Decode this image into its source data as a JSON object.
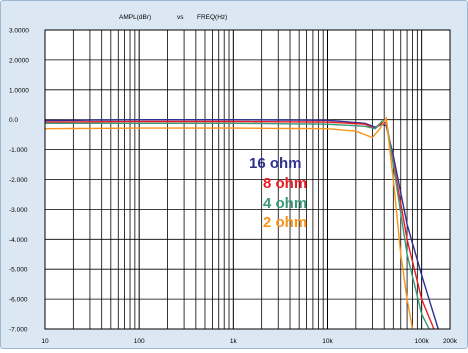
{
  "chart_data": {
    "type": "line",
    "title_y": "AMPL(dBr)",
    "title_vs": "vs",
    "title_x": "FREQ(Hz)",
    "x_scale": "log",
    "xlim": [
      10,
      200000
    ],
    "ylim": [
      -7,
      3
    ],
    "grid": true,
    "y_ticks": [
      {
        "value": 3,
        "label": "3.0000"
      },
      {
        "value": 2,
        "label": "2.0000"
      },
      {
        "value": 1,
        "label": "1.0000"
      },
      {
        "value": 0,
        "label": "0.0"
      },
      {
        "value": -1,
        "label": "-1.000"
      },
      {
        "value": -2,
        "label": "-2.000"
      },
      {
        "value": -3,
        "label": "-3.000"
      },
      {
        "value": -4,
        "label": "-4.000"
      },
      {
        "value": -5,
        "label": "-5.000"
      },
      {
        "value": -6,
        "label": "-6.000"
      },
      {
        "value": -7,
        "label": "-7.000"
      }
    ],
    "x_ticks": [
      {
        "value": 10,
        "label": "10"
      },
      {
        "value": 100,
        "label": "100"
      },
      {
        "value": 1000,
        "label": "1k"
      },
      {
        "value": 10000,
        "label": "10k"
      },
      {
        "value": 100000,
        "label": "100k"
      },
      {
        "value": 200000,
        "label": "200k"
      }
    ],
    "series": [
      {
        "name": "16 ohm",
        "color": "#2e3192",
        "points": [
          [
            10,
            -0.03
          ],
          [
            100,
            0.0
          ],
          [
            1000,
            0.0
          ],
          [
            10000,
            -0.02
          ],
          [
            25000,
            -0.12
          ],
          [
            32000,
            -0.25
          ],
          [
            38000,
            -0.15
          ],
          [
            42000,
            -0.2
          ],
          [
            50000,
            -1.2
          ],
          [
            70000,
            -3.5
          ],
          [
            100000,
            -5.2
          ],
          [
            150000,
            -7.0
          ]
        ]
      },
      {
        "name": "8 ohm",
        "color": "#ed1c24",
        "points": [
          [
            10,
            -0.08
          ],
          [
            100,
            -0.06
          ],
          [
            1000,
            -0.06
          ],
          [
            10000,
            -0.08
          ],
          [
            25000,
            -0.15
          ],
          [
            32000,
            -0.3
          ],
          [
            38000,
            -0.1
          ],
          [
            42000,
            -0.1
          ],
          [
            50000,
            -1.4
          ],
          [
            70000,
            -4.0
          ],
          [
            100000,
            -6.0
          ],
          [
            135000,
            -7.0
          ]
        ]
      },
      {
        "name": "4 ohm",
        "color": "#3a9a7a",
        "points": [
          [
            10,
            -0.12
          ],
          [
            100,
            -0.12
          ],
          [
            1000,
            -0.12
          ],
          [
            10000,
            -0.15
          ],
          [
            25000,
            -0.22
          ],
          [
            32000,
            -0.3
          ],
          [
            38000,
            -0.05
          ],
          [
            42000,
            0.0
          ],
          [
            50000,
            -1.5
          ],
          [
            70000,
            -4.5
          ],
          [
            100000,
            -6.5
          ],
          [
            120000,
            -7.0
          ]
        ]
      },
      {
        "name": "2 ohm",
        "color": "#f7941d",
        "points": [
          [
            10,
            -0.3
          ],
          [
            100,
            -0.28
          ],
          [
            1000,
            -0.28
          ],
          [
            10000,
            -0.3
          ],
          [
            20000,
            -0.38
          ],
          [
            30000,
            -0.6
          ],
          [
            36000,
            -0.3
          ],
          [
            42000,
            0.05
          ],
          [
            50000,
            -2.0
          ],
          [
            60000,
            -4.5
          ],
          [
            70000,
            -6.0
          ],
          [
            80000,
            -7.0
          ]
        ]
      }
    ]
  }
}
